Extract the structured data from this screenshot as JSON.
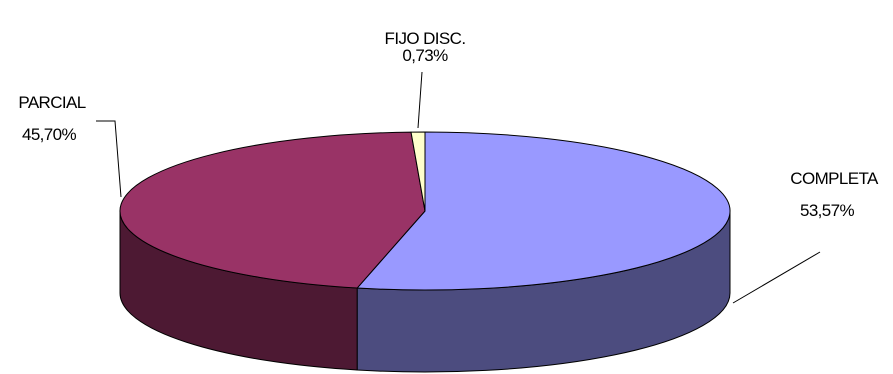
{
  "chart_data": {
    "type": "pie",
    "style": "3d",
    "slices": [
      {
        "label": "COMPLETA",
        "value": 53.57,
        "value_text": "53,57%",
        "color": "#9999ff",
        "side_color": "#4c4c7f"
      },
      {
        "label": "PARCIAL",
        "value": 45.7,
        "value_text": "45,70%",
        "color": "#993366",
        "side_color": "#4d1933"
      },
      {
        "label": "FIJO DISC.",
        "value": 0.73,
        "value_text": "0,73%",
        "color": "#ffffcc",
        "side_color": "#7f7f66"
      }
    ]
  }
}
